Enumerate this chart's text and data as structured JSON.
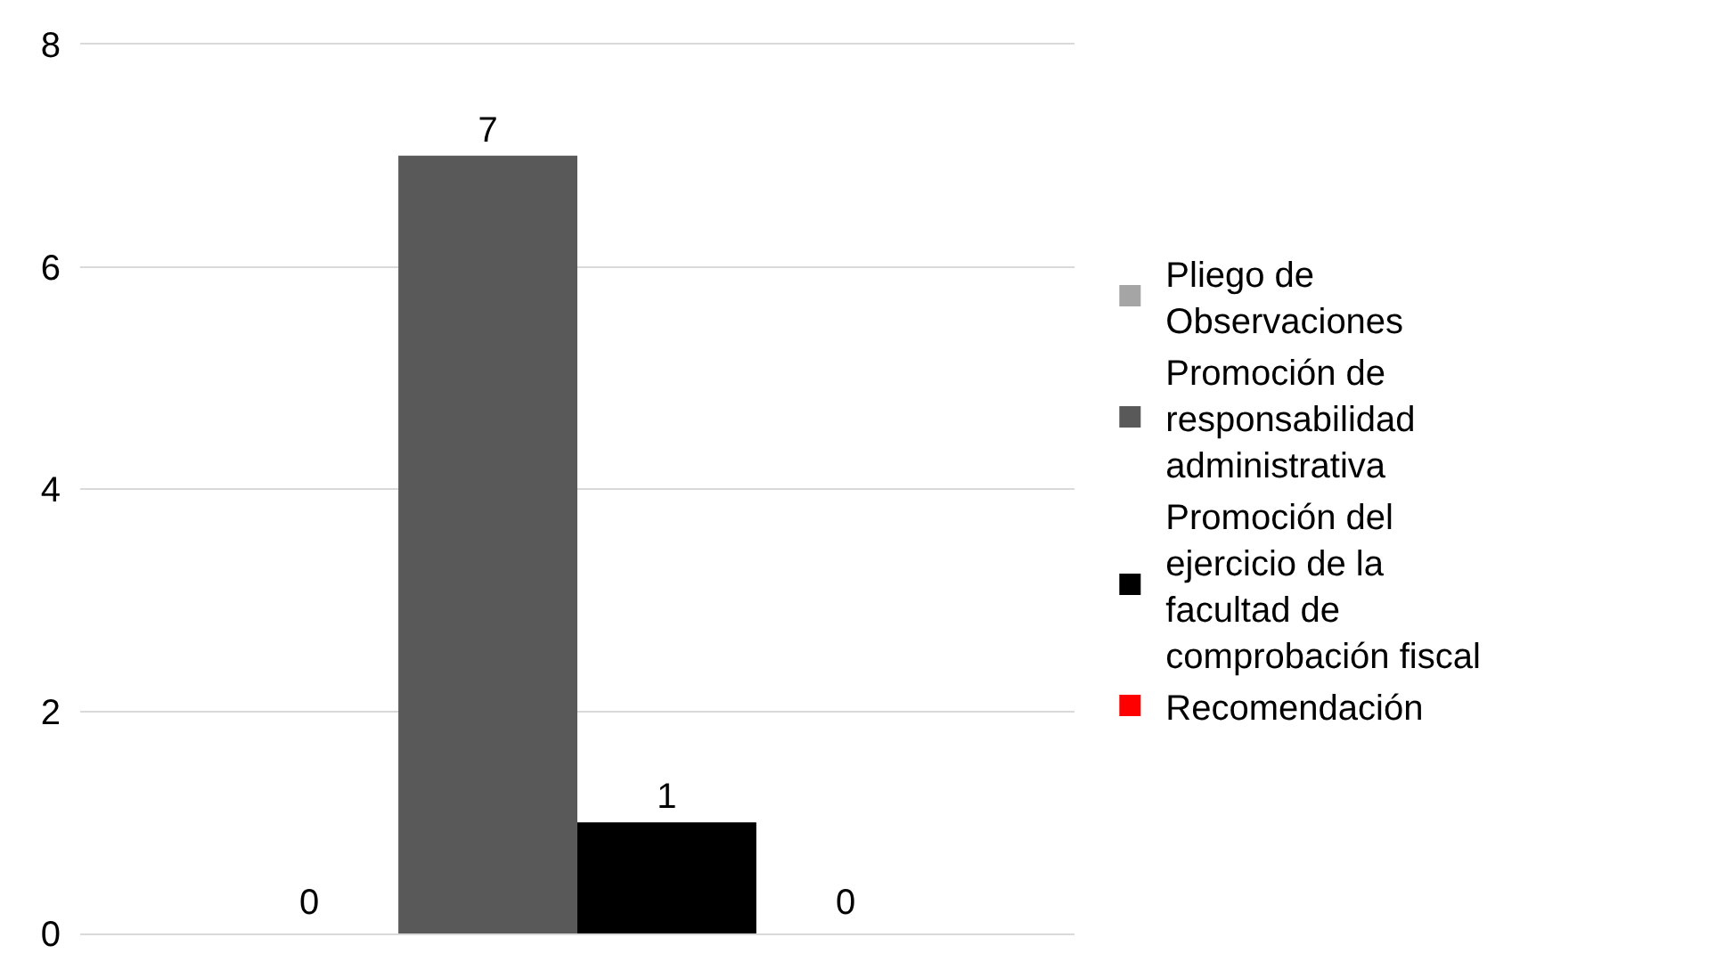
{
  "chart_data": {
    "type": "bar",
    "categories": [
      null
    ],
    "series": [
      {
        "name": "Pliego de Observaciones",
        "color": "#a5a5a5",
        "values": [
          0
        ],
        "value_labels": [
          null
        ]
      },
      {
        "name": "Promoción de responsabilidad administrativa",
        "color": "#595959",
        "values": [
          7
        ],
        "value_labels": [
          "7"
        ]
      },
      {
        "name": "Promoción del ejercicio de la facultad de comprobación fiscal",
        "color": "#000000",
        "values": [
          1
        ],
        "value_labels": [
          "1"
        ]
      },
      {
        "name": "Recomendación",
        "color": "#ff0000",
        "values": [
          0
        ],
        "value_labels": [
          null
        ]
      }
    ],
    "annotations": [
      "0",
      "0"
    ],
    "ylim": [
      0,
      8
    ],
    "yticks": [
      0,
      2,
      4,
      6,
      8
    ],
    "grid": "y",
    "legend": "right"
  }
}
